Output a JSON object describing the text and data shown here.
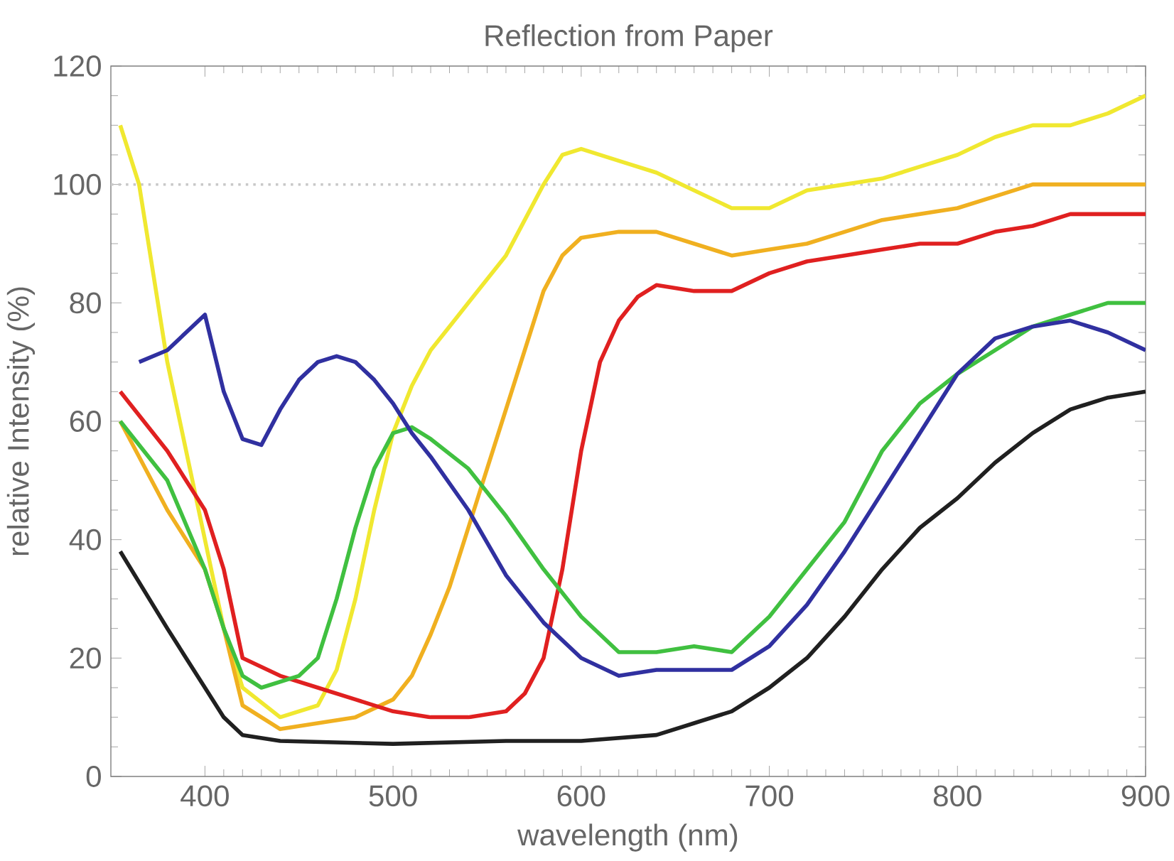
{
  "chart_data": {
    "type": "line",
    "title": "Reflection from Paper",
    "xlabel": "wavelength (nm)",
    "ylabel": "relative Intensity (%)",
    "xlim": [
      350,
      900
    ],
    "ylim": [
      0,
      120
    ],
    "xticks": [
      400,
      500,
      600,
      700,
      800,
      900
    ],
    "yticks": [
      0,
      20,
      40,
      60,
      80,
      100,
      120
    ],
    "ref_lines": [
      {
        "axis": "y",
        "value": 100,
        "color": "#c8c8c8",
        "line_style": "dotted"
      }
    ],
    "series": [
      {
        "color": "#f0e830",
        "x": [
          355,
          365,
          380,
          400,
          410,
          420,
          440,
          460,
          470,
          480,
          490,
          500,
          510,
          520,
          530,
          540,
          550,
          560,
          570,
          580,
          590,
          600,
          620,
          640,
          660,
          680,
          700,
          720,
          740,
          760,
          780,
          800,
          820,
          840,
          860,
          880,
          900
        ],
        "values": [
          110,
          100,
          70,
          40,
          25,
          15,
          10,
          12,
          18,
          30,
          45,
          58,
          66,
          72,
          76,
          80,
          84,
          88,
          94,
          100,
          105,
          106,
          104,
          102,
          99,
          96,
          96,
          99,
          100,
          101,
          103,
          105,
          108,
          110,
          110,
          112,
          115
        ]
      },
      {
        "color": "#f0b020",
        "x": [
          355,
          380,
          400,
          410,
          420,
          440,
          460,
          480,
          500,
          510,
          520,
          530,
          540,
          550,
          560,
          570,
          580,
          590,
          600,
          620,
          640,
          660,
          680,
          700,
          720,
          740,
          760,
          780,
          800,
          820,
          840,
          860,
          880,
          900
        ],
        "values": [
          60,
          45,
          35,
          25,
          12,
          8,
          9,
          10,
          13,
          17,
          24,
          32,
          42,
          52,
          62,
          72,
          82,
          88,
          91,
          92,
          92,
          90,
          88,
          89,
          90,
          92,
          94,
          95,
          96,
          98,
          100,
          100,
          100,
          100
        ]
      },
      {
        "color": "#e02020",
        "x": [
          355,
          380,
          400,
          410,
          420,
          440,
          460,
          480,
          500,
          520,
          540,
          560,
          570,
          580,
          590,
          600,
          610,
          620,
          630,
          640,
          660,
          680,
          700,
          720,
          740,
          760,
          780,
          800,
          820,
          840,
          860,
          880,
          900
        ],
        "values": [
          65,
          55,
          45,
          35,
          20,
          17,
          15,
          13,
          11,
          10,
          10,
          11,
          14,
          20,
          35,
          55,
          70,
          77,
          81,
          83,
          82,
          82,
          85,
          87,
          88,
          89,
          90,
          90,
          92,
          93,
          95,
          95,
          95
        ]
      },
      {
        "color": "#40c040",
        "x": [
          355,
          380,
          400,
          410,
          420,
          430,
          450,
          460,
          470,
          480,
          490,
          500,
          510,
          520,
          540,
          560,
          580,
          600,
          620,
          640,
          660,
          680,
          700,
          720,
          740,
          760,
          780,
          800,
          820,
          840,
          860,
          880,
          900
        ],
        "values": [
          60,
          50,
          35,
          25,
          17,
          15,
          17,
          20,
          30,
          42,
          52,
          58,
          59,
          57,
          52,
          44,
          35,
          27,
          21,
          21,
          22,
          21,
          27,
          35,
          43,
          55,
          63,
          68,
          72,
          76,
          78,
          80,
          80
        ]
      },
      {
        "color": "#3030a0",
        "x": [
          365,
          380,
          390,
          400,
          410,
          420,
          430,
          440,
          450,
          460,
          470,
          480,
          490,
          500,
          510,
          520,
          540,
          560,
          580,
          600,
          620,
          640,
          660,
          680,
          700,
          720,
          740,
          760,
          780,
          800,
          820,
          840,
          860,
          880,
          900
        ],
        "values": [
          70,
          72,
          75,
          78,
          65,
          57,
          56,
          62,
          67,
          70,
          71,
          70,
          67,
          63,
          58,
          54,
          45,
          34,
          26,
          20,
          17,
          18,
          18,
          18,
          22,
          29,
          38,
          48,
          58,
          68,
          74,
          76,
          77,
          75,
          72
        ]
      },
      {
        "color": "#202020",
        "x": [
          355,
          380,
          400,
          410,
          420,
          440,
          500,
          560,
          600,
          620,
          640,
          660,
          680,
          700,
          720,
          740,
          760,
          780,
          800,
          820,
          840,
          860,
          880,
          900
        ],
        "values": [
          38,
          25,
          15,
          10,
          7,
          6,
          5.5,
          6,
          6,
          6.5,
          7,
          9,
          11,
          15,
          20,
          27,
          35,
          42,
          47,
          53,
          58,
          62,
          64,
          65
        ]
      }
    ]
  }
}
